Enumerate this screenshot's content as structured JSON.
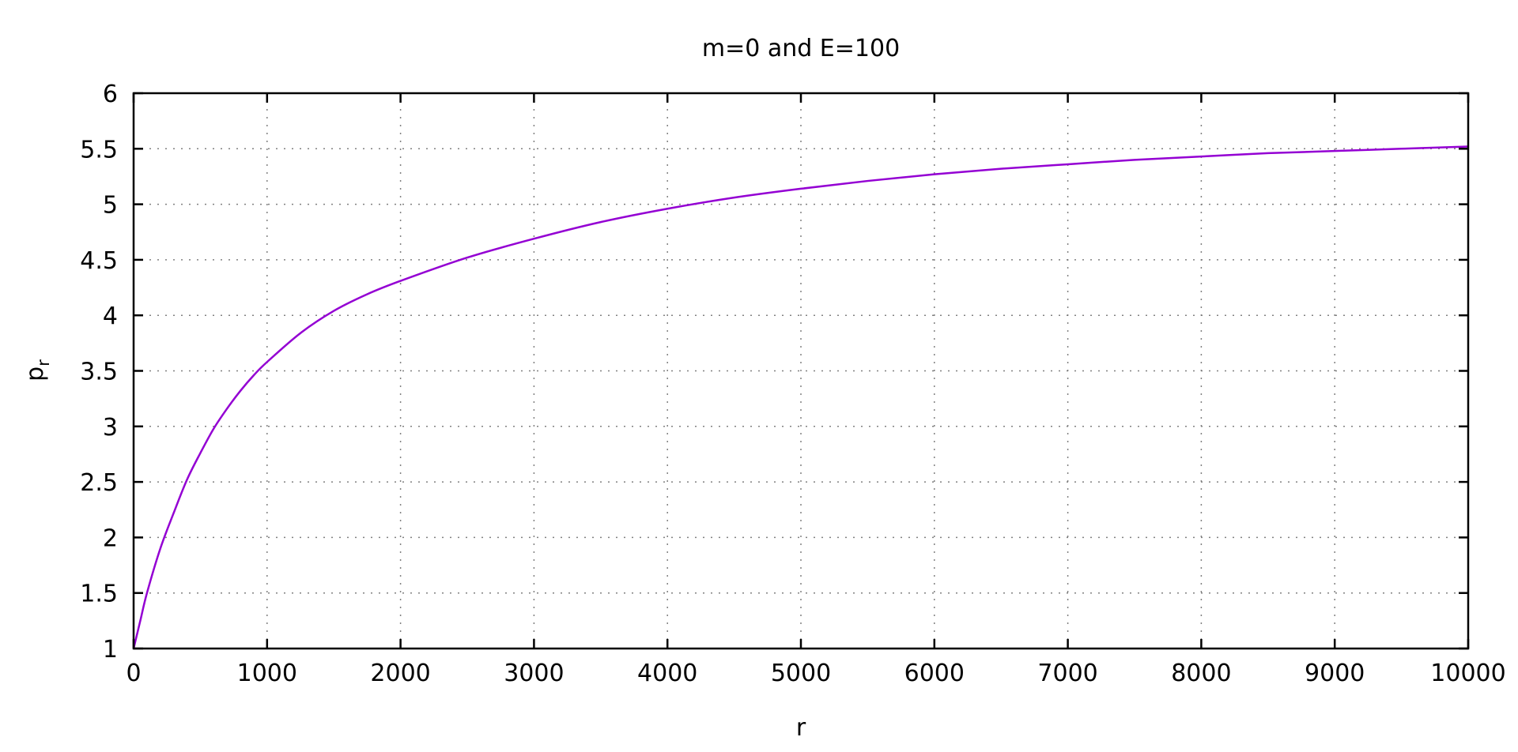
{
  "chart_data": {
    "type": "line",
    "title": "m=0 and E=100",
    "xlabel": "r",
    "ylabel": {
      "base": "p",
      "subscript": "r"
    },
    "xlim": [
      0,
      10000
    ],
    "ylim": [
      1,
      6
    ],
    "x_ticks": [
      0,
      1000,
      2000,
      3000,
      4000,
      5000,
      6000,
      7000,
      8000,
      9000,
      10000
    ],
    "x_tick_labels": [
      "0",
      "1000",
      "2000",
      "3000",
      "4000",
      "5000",
      "6000",
      "7000",
      "8000",
      "9000",
      "10000"
    ],
    "y_ticks": [
      1,
      1.5,
      2,
      2.5,
      3,
      3.5,
      4,
      4.5,
      5,
      5.5,
      6
    ],
    "y_tick_labels": [
      "1",
      "1.5",
      "2",
      "2.5",
      "3",
      "3.5",
      "4",
      "4.5",
      "5",
      "5.5",
      "6"
    ],
    "grid": true,
    "legend": "none",
    "series": [
      {
        "color": "#9400d3",
        "x": [
          0,
          50,
          100,
          200,
          300,
          400,
          500,
          600,
          700,
          800,
          900,
          1000,
          1250,
          1500,
          1750,
          2000,
          2500,
          3000,
          3500,
          4000,
          4500,
          5000,
          5500,
          6000,
          6500,
          7000,
          7500,
          8000,
          8500,
          9000,
          9500,
          10000
        ],
        "y": [
          1.0,
          1.25,
          1.5,
          1.9,
          2.22,
          2.52,
          2.76,
          2.98,
          3.16,
          3.32,
          3.46,
          3.58,
          3.84,
          4.04,
          4.19,
          4.31,
          4.52,
          4.69,
          4.84,
          4.96,
          5.06,
          5.14,
          5.21,
          5.27,
          5.32,
          5.36,
          5.4,
          5.43,
          5.46,
          5.48,
          5.5,
          5.52
        ]
      }
    ]
  }
}
